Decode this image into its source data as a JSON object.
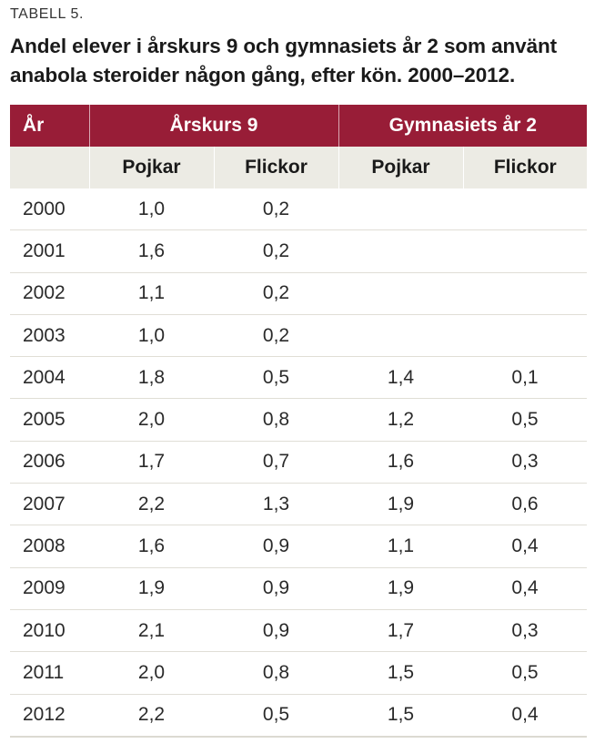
{
  "table_label": "TABELL 5.",
  "title": "Andel elever i årskurs 9 och gymnasiets år 2 som använt anabola steroider någon gång, efter kön. 2000–2012.",
  "colors": {
    "header_bg": "#981d37",
    "subheader_bg": "#ecebe4"
  },
  "header": {
    "year": "År",
    "group1": "Årskurs 9",
    "group2": "Gymnasiets år 2",
    "sub": [
      "Pojkar",
      "Flickor",
      "Pojkar",
      "Flickor"
    ]
  },
  "rows": [
    {
      "year": "2000",
      "ak9_p": "1,0",
      "ak9_f": "0,2",
      "gy2_p": "",
      "gy2_f": ""
    },
    {
      "year": "2001",
      "ak9_p": "1,6",
      "ak9_f": "0,2",
      "gy2_p": "",
      "gy2_f": ""
    },
    {
      "year": "2002",
      "ak9_p": "1,1",
      "ak9_f": "0,2",
      "gy2_p": "",
      "gy2_f": ""
    },
    {
      "year": "2003",
      "ak9_p": "1,0",
      "ak9_f": "0,2",
      "gy2_p": "",
      "gy2_f": ""
    },
    {
      "year": "2004",
      "ak9_p": "1,8",
      "ak9_f": "0,5",
      "gy2_p": "1,4",
      "gy2_f": "0,1"
    },
    {
      "year": "2005",
      "ak9_p": "2,0",
      "ak9_f": "0,8",
      "gy2_p": "1,2",
      "gy2_f": "0,5"
    },
    {
      "year": "2006",
      "ak9_p": "1,7",
      "ak9_f": "0,7",
      "gy2_p": "1,6",
      "gy2_f": "0,3"
    },
    {
      "year": "2007",
      "ak9_p": "2,2",
      "ak9_f": "1,3",
      "gy2_p": "1,9",
      "gy2_f": "0,6"
    },
    {
      "year": "2008",
      "ak9_p": "1,6",
      "ak9_f": "0,9",
      "gy2_p": "1,1",
      "gy2_f": "0,4"
    },
    {
      "year": "2009",
      "ak9_p": "1,9",
      "ak9_f": "0,9",
      "gy2_p": "1,9",
      "gy2_f": "0,4"
    },
    {
      "year": "2010",
      "ak9_p": "2,1",
      "ak9_f": "0,9",
      "gy2_p": "1,7",
      "gy2_f": "0,3"
    },
    {
      "year": "2011",
      "ak9_p": "2,0",
      "ak9_f": "0,8",
      "gy2_p": "1,5",
      "gy2_f": "0,5"
    },
    {
      "year": "2012",
      "ak9_p": "2,2",
      "ak9_f": "0,5",
      "gy2_p": "1,5",
      "gy2_f": "0,4"
    }
  ]
}
